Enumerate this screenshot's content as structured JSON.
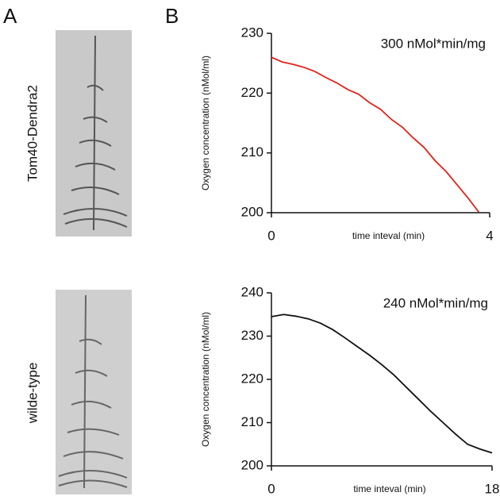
{
  "panels": [
    "A",
    "B"
  ],
  "images": [
    {
      "label": "Tom40-Dendra2",
      "color": "#e2231a"
    },
    {
      "label": "wilde-type",
      "color": "#111111"
    }
  ],
  "chart_data": [
    {
      "type": "line",
      "x_label": "time inteval (min)",
      "y_label": "Oxygen concentration (nMol/ml)",
      "annotation": "300 nMol*min/mg",
      "x": [
        0,
        0.2,
        0.4,
        0.6,
        0.8,
        1.0,
        1.2,
        1.4,
        1.6,
        1.8,
        2.0,
        2.2,
        2.4,
        2.6,
        2.8,
        3.0,
        3.2,
        3.4,
        3.6,
        3.8
      ],
      "series": [
        {
          "name": "Tom40-Dendra2",
          "color": "#e2231a",
          "values": [
            226,
            225.2,
            224.8,
            224.3,
            223.6,
            222.6,
            221.7,
            220.6,
            219.8,
            218.4,
            217.3,
            215.6,
            214.3,
            212.5,
            210.9,
            208.7,
            206.9,
            204.7,
            202.5,
            200.1
          ]
        }
      ],
      "xlim": [
        0,
        4
      ],
      "xticks": [
        0,
        4
      ],
      "ylim": [
        200,
        230
      ],
      "yticks": [
        200,
        210,
        220,
        230
      ]
    },
    {
      "type": "line",
      "x_label": "time inteval (min)",
      "y_label": "Oxygen concentration (nMol/ml)",
      "annotation": "240 nMol*min/mg",
      "x": [
        0,
        1,
        2,
        3,
        4,
        5,
        6,
        7,
        8,
        9,
        10,
        11,
        12,
        13,
        14,
        15,
        16,
        17,
        18
      ],
      "series": [
        {
          "name": "wilde-type",
          "color": "#111111",
          "values": [
            234.5,
            235,
            234.6,
            234,
            233,
            231.5,
            229.6,
            227.6,
            225.6,
            223.4,
            221,
            218.2,
            215.4,
            212.6,
            210,
            207.4,
            205,
            203.9,
            203
          ]
        }
      ],
      "xlim": [
        0,
        18
      ],
      "xticks": [
        0,
        18
      ],
      "ylim": [
        200,
        240
      ],
      "yticks": [
        200,
        210,
        220,
        230,
        240
      ]
    }
  ]
}
